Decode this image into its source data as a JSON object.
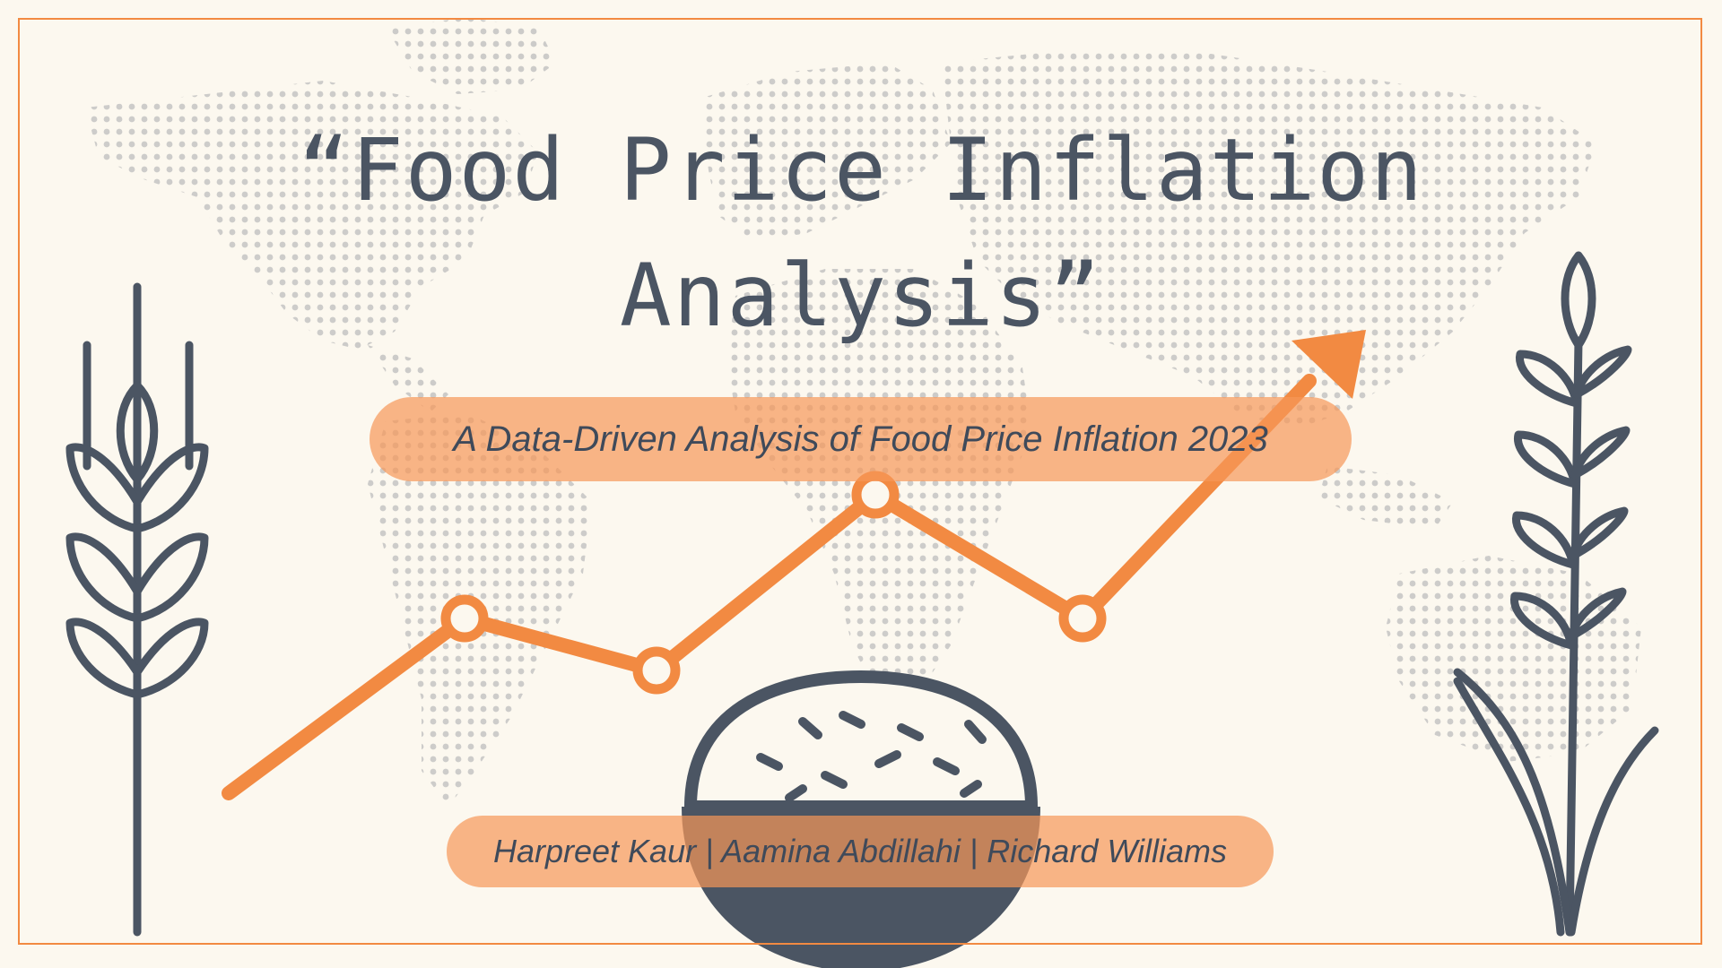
{
  "title": {
    "line1": "“Food Price Inflation",
    "line2": "Analysis”"
  },
  "subtitle": "A Data-Driven Analysis of Food Price Inflation 2023",
  "authors": "Harpreet Kaur | Aamina Abdillahi | Richard Williams",
  "colors": {
    "background": "#fcf8ef",
    "accent_orange": "#f28a42",
    "slate": "#4b5563",
    "map_dots": "#bdbdbd"
  },
  "icons": [
    "world-map-dots",
    "wheat-stalk-icon",
    "rice-plant-icon",
    "rice-bowl-icon",
    "trend-line-arrow"
  ]
}
